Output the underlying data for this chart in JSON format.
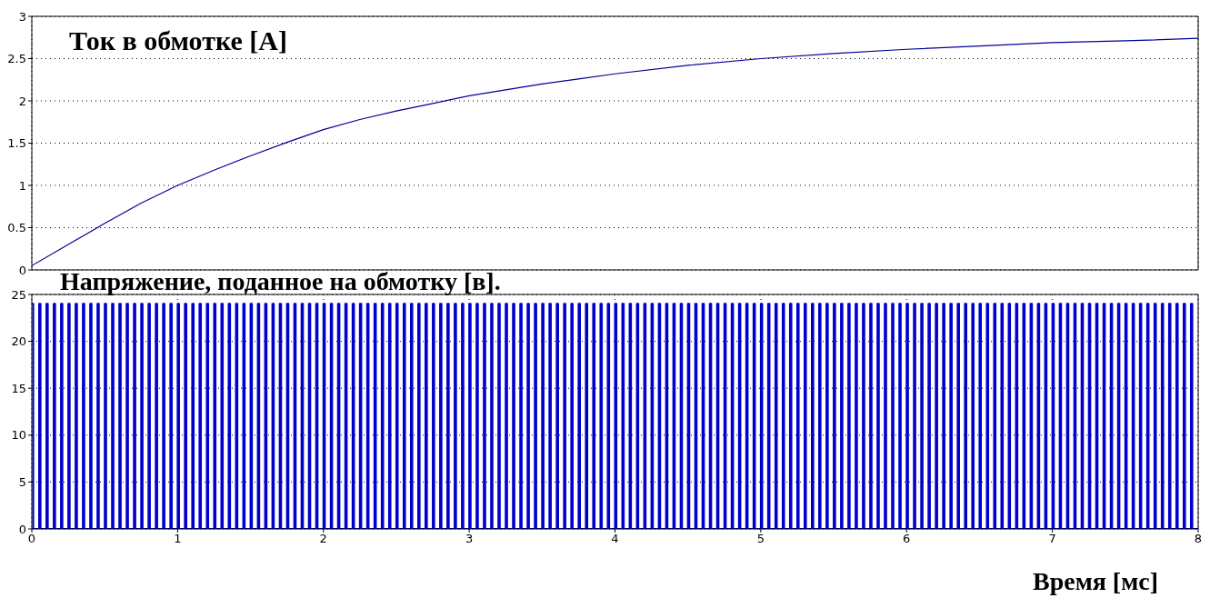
{
  "chart_data": [
    {
      "type": "line",
      "title": "Ток в обмотке [А]",
      "x": [
        0,
        0.25,
        0.5,
        0.75,
        1,
        1.25,
        1.5,
        1.75,
        2,
        2.25,
        2.5,
        2.75,
        3,
        3.25,
        3.5,
        3.75,
        4,
        4.5,
        5,
        5.5,
        6,
        6.5,
        7,
        7.5,
        8
      ],
      "series": [
        {
          "color": "#000099",
          "values": [
            0.05,
            0.3,
            0.55,
            0.79,
            1.0,
            1.18,
            1.35,
            1.51,
            1.66,
            1.78,
            1.88,
            1.97,
            2.06,
            2.13,
            2.2,
            2.26,
            2.32,
            2.42,
            2.5,
            2.56,
            2.61,
            2.65,
            2.69,
            2.71,
            2.74
          ]
        }
      ],
      "xlim": [
        0,
        8
      ],
      "xticks": [
        0,
        1,
        2,
        3,
        4,
        5,
        6,
        7,
        8
      ],
      "ylim": [
        0,
        3
      ],
      "yticks": [
        0,
        0.5,
        1,
        1.5,
        2,
        2.5,
        3
      ],
      "grid": true,
      "tick_labels": "y"
    },
    {
      "type": "step",
      "title": "Напряжение, поданное на обмотку [в].",
      "xlabel": "Время [мс]",
      "x": [
        0,
        0.01,
        0.05,
        0.06,
        0.1,
        0.11,
        0.15,
        0.16,
        0.2,
        0.21,
        0.25,
        0.26,
        0.3,
        0.31,
        0.35,
        0.36,
        0.4,
        0.41,
        0.45,
        0.46,
        0.5,
        0.51,
        0.55,
        0.56,
        0.6,
        0.61,
        0.65,
        0.66,
        0.7,
        0.71,
        0.75,
        0.76,
        0.8,
        0.81,
        0.85,
        0.86,
        0.9,
        0.91,
        0.95,
        0.96,
        1,
        1.01,
        1.05,
        1.06,
        1.1,
        1.11,
        1.15,
        1.16,
        1.2,
        1.21,
        1.25,
        1.26,
        1.3,
        1.31,
        1.35,
        1.36,
        1.4,
        1.41,
        1.45,
        1.46,
        1.5,
        1.51,
        1.55,
        1.56,
        1.6,
        1.61,
        1.65,
        1.66,
        1.7,
        1.71,
        1.75,
        1.76,
        1.8,
        1.81,
        1.85,
        1.86,
        1.9,
        1.91,
        1.95,
        1.96,
        2,
        2.01,
        2.05,
        2.06,
        2.1,
        2.11,
        2.15,
        2.16,
        2.2,
        2.21,
        2.25,
        2.26,
        2.3,
        2.31,
        2.35,
        2.36,
        2.4,
        2.41,
        2.45,
        2.46,
        2.5,
        2.51,
        2.55,
        2.56,
        2.6,
        2.61,
        2.65,
        2.66,
        2.7,
        2.71,
        2.75,
        2.76,
        2.8,
        2.81,
        2.85,
        2.86,
        2.9,
        2.91,
        2.95,
        2.96,
        3,
        3.01,
        3.05,
        3.06,
        3.1,
        3.11,
        3.15,
        3.16,
        3.2,
        3.21,
        3.25,
        3.26,
        3.3,
        3.31,
        3.35,
        3.36,
        3.4,
        3.41,
        3.45,
        3.46,
        3.5,
        3.51,
        3.55,
        3.56,
        3.6,
        3.61,
        3.65,
        3.66,
        3.7,
        3.71,
        3.75,
        3.76,
        3.8,
        3.81,
        3.85,
        3.86,
        3.9,
        3.91,
        3.95,
        3.96,
        4,
        4.01,
        4.05,
        4.06,
        4.1,
        4.11,
        4.15,
        4.16,
        4.2,
        4.21,
        4.25,
        4.26,
        4.3,
        4.31,
        4.35,
        4.36,
        4.4,
        4.41,
        4.45,
        4.46,
        4.5,
        4.51,
        4.55,
        4.56,
        4.6,
        4.61,
        4.65,
        4.66,
        4.7,
        4.71,
        4.75,
        4.76,
        4.8,
        4.81,
        4.85,
        4.86,
        4.9,
        4.91,
        4.95,
        4.96,
        5,
        5.01,
        5.05,
        5.06,
        5.1,
        5.11,
        5.15,
        5.16,
        5.2,
        5.21,
        5.25,
        5.26,
        5.3,
        5.31,
        5.35,
        5.36,
        5.4,
        5.41,
        5.45,
        5.46,
        5.5,
        5.51,
        5.55,
        5.56,
        5.6,
        5.61,
        5.65,
        5.66,
        5.7,
        5.71,
        5.75,
        5.76,
        5.8,
        5.81,
        5.85,
        5.86,
        5.9,
        5.91,
        5.95,
        5.96,
        6,
        6.01,
        6.05,
        6.06,
        6.1,
        6.11,
        6.15,
        6.16,
        6.2,
        6.21,
        6.25,
        6.26,
        6.3,
        6.31,
        6.35,
        6.36,
        6.4,
        6.41,
        6.45,
        6.46,
        6.5,
        6.51,
        6.55,
        6.56,
        6.6,
        6.61,
        6.65,
        6.66,
        6.7,
        6.71,
        6.75,
        6.76,
        6.8,
        6.81,
        6.85,
        6.86,
        6.9,
        6.91,
        6.95,
        6.96,
        7,
        7.01,
        7.05,
        7.06,
        7.1,
        7.11,
        7.15,
        7.16,
        7.2,
        7.21,
        7.25,
        7.26,
        7.3,
        7.31,
        7.35,
        7.36,
        7.4,
        7.41,
        7.45,
        7.46,
        7.5,
        7.51,
        7.55,
        7.56,
        7.6,
        7.61,
        7.65,
        7.66,
        7.7,
        7.71,
        7.75,
        7.76,
        7.8,
        7.81,
        7.85,
        7.86,
        7.9,
        7.91,
        7.95,
        7.96,
        8
      ],
      "series": [
        {
          "color": "#0000cc",
          "values": [
            24,
            0,
            24,
            0,
            24,
            0,
            24,
            0,
            24,
            0,
            24,
            0,
            24,
            0,
            24,
            0,
            24,
            0,
            24,
            0,
            24,
            0,
            24,
            0,
            24,
            0,
            24,
            0,
            24,
            0,
            24,
            0,
            24,
            0,
            24,
            0,
            24,
            0,
            24,
            0,
            24,
            0,
            24,
            0,
            24,
            0,
            24,
            0,
            24,
            0,
            24,
            0,
            24,
            0,
            24,
            0,
            24,
            0,
            24,
            0,
            24,
            0,
            24,
            0,
            24,
            0,
            24,
            0,
            24,
            0,
            24,
            0,
            24,
            0,
            24,
            0,
            24,
            0,
            24,
            0,
            24,
            0,
            24,
            0,
            24,
            0,
            24,
            0,
            24,
            0,
            24,
            0,
            24,
            0,
            24,
            0,
            24,
            0,
            24,
            0,
            24,
            0,
            24,
            0,
            24,
            0,
            24,
            0,
            24,
            0,
            24,
            0,
            24,
            0,
            24,
            0,
            24,
            0,
            24,
            0,
            24,
            0,
            24,
            0,
            24,
            0,
            24,
            0,
            24,
            0,
            24,
            0,
            24,
            0,
            24,
            0,
            24,
            0,
            24,
            0,
            24,
            0,
            24,
            0,
            24,
            0,
            24,
            0,
            24,
            0,
            24,
            0,
            24,
            0,
            24,
            0,
            24,
            0,
            24,
            0,
            24,
            0,
            24,
            0,
            24,
            0,
            24,
            0,
            24,
            0,
            24,
            0,
            24,
            0,
            24,
            0,
            24,
            0,
            24,
            0,
            24,
            0,
            24,
            0,
            24,
            0,
            24,
            0,
            24,
            0,
            24,
            0,
            24,
            0,
            24,
            0,
            24,
            0,
            24,
            0,
            24,
            0,
            24,
            0,
            24,
            0,
            24,
            0,
            24,
            0,
            24,
            0,
            24,
            0,
            24,
            0,
            24,
            0,
            24,
            0,
            24,
            0,
            24,
            0,
            24,
            0,
            24,
            0,
            24,
            0,
            24,
            0,
            24,
            0,
            24,
            0,
            24,
            0,
            24,
            0,
            24,
            0,
            24,
            0,
            24,
            0,
            24,
            0,
            24,
            0,
            24,
            0,
            24,
            0,
            24,
            0,
            24,
            0,
            24,
            0,
            24,
            0,
            24,
            0,
            24,
            0,
            24,
            0,
            24,
            0,
            24,
            0,
            24,
            0,
            24,
            0,
            24,
            0,
            24,
            0,
            24,
            0,
            24,
            0,
            24,
            0,
            24,
            0,
            24,
            0,
            24,
            0,
            24,
            0,
            24,
            0,
            24,
            0,
            24,
            0,
            24,
            0,
            24,
            0,
            24,
            0,
            24,
            0,
            24,
            0,
            24,
            0,
            24,
            0,
            24,
            0,
            24,
            0,
            24,
            0,
            0
          ]
        }
      ],
      "xlim": [
        0,
        8
      ],
      "xticks": [
        0,
        1,
        2,
        3,
        4,
        5,
        6,
        7,
        8
      ],
      "ylim": [
        0,
        25
      ],
      "yticks": [
        0,
        5,
        10,
        15,
        20,
        25
      ],
      "grid": true
    }
  ]
}
